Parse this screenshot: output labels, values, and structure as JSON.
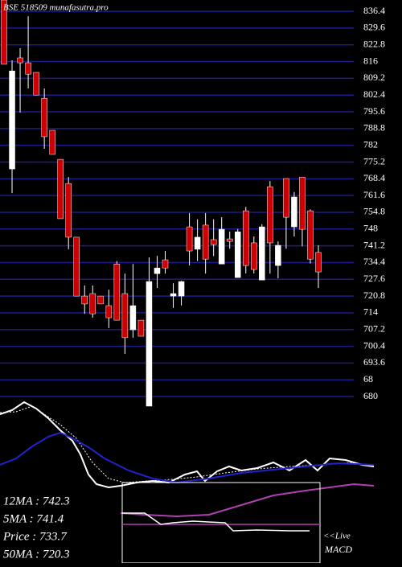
{
  "chart_data": {
    "type": "candlestick",
    "title": "BSE 518509 munafasutra.pro",
    "up_color": "#ffffff",
    "down_color": "#cc0000",
    "grid_color": "#1c1c8a",
    "ylim": [
      676.1,
      841.0
    ],
    "yticks": [
      836.4,
      829.6,
      822.8,
      816,
      809.2,
      802.4,
      795.6,
      788.8,
      782,
      775.2,
      768.4,
      761.6,
      754.8,
      748,
      741.2,
      734.4,
      727.6,
      720.8,
      714,
      707.2,
      700.4,
      693.6,
      {
        "value": 686.8,
        "label": "68"
      },
      680
    ],
    "open": [
      841.0,
      772.4,
      817.5,
      815.5,
      811.6,
      801.1,
      788.1,
      776.3,
      766.5,
      744.7,
      720.8,
      721.8,
      720.8,
      716.9,
      733.8,
      721.8,
      707.1,
      711.0,
      676.1,
      729.9,
      735.5,
      720.8,
      720.8,
      748.9,
      739.8,
      749.6,
      743.7,
      733.8,
      744.0,
      728.3,
      755.4,
      742.4,
      727.3,
      765.2,
      733.2,
      768.5,
      748.9,
      769.1,
      755.4,
      738.5
    ],
    "high": [
      841.0,
      816.5,
      821.4,
      834.4,
      811.6,
      805.1,
      788.1,
      776.3,
      769.1,
      744.7,
      725.1,
      725.1,
      720.8,
      723.4,
      735.0,
      729.9,
      733.8,
      711.0,
      736.5,
      737.1,
      739.1,
      726.0,
      727.0,
      754.5,
      752.0,
      754.5,
      752.0,
      752.8,
      747.0,
      748.0,
      757.0,
      745.0,
      750.0,
      767.5,
      743.0,
      768.5,
      763.0,
      769.1,
      756.0,
      741.4
    ],
    "low": [
      814.9,
      762.6,
      795.3,
      805.1,
      802.4,
      780.6,
      778.3,
      752.2,
      739.8,
      720.8,
      713.6,
      712.0,
      717.6,
      707.8,
      711.0,
      697.3,
      703.9,
      704.5,
      676.1,
      724.1,
      729.9,
      716.0,
      717.0,
      733.2,
      735.0,
      729.9,
      737.0,
      733.8,
      740.0,
      728.3,
      730.0,
      730.0,
      727.3,
      729.9,
      728.0,
      740.0,
      745.0,
      741.0,
      734.0,
      724.1
    ],
    "close": [
      814.9,
      812.2,
      815.5,
      810.9,
      802.4,
      785.5,
      778.3,
      752.2,
      744.7,
      720.8,
      717.6,
      713.6,
      717.6,
      712.0,
      711.0,
      703.9,
      716.9,
      704.5,
      726.7,
      732.2,
      732.2,
      721.8,
      726.7,
      739.1,
      744.7,
      735.8,
      741.7,
      747.9,
      743.0,
      746.9,
      733.2,
      731.6,
      748.9,
      742.4,
      741.4,
      752.8,
      761.0,
      747.9,
      735.8,
      730.6
    ],
    "annotations": [
      "12MA : 742.3",
      "5MA : 741.4",
      "Price : 733.7",
      "50MA : 720.3"
    ],
    "macd_labels": [
      "<<Live",
      "MACD"
    ]
  }
}
